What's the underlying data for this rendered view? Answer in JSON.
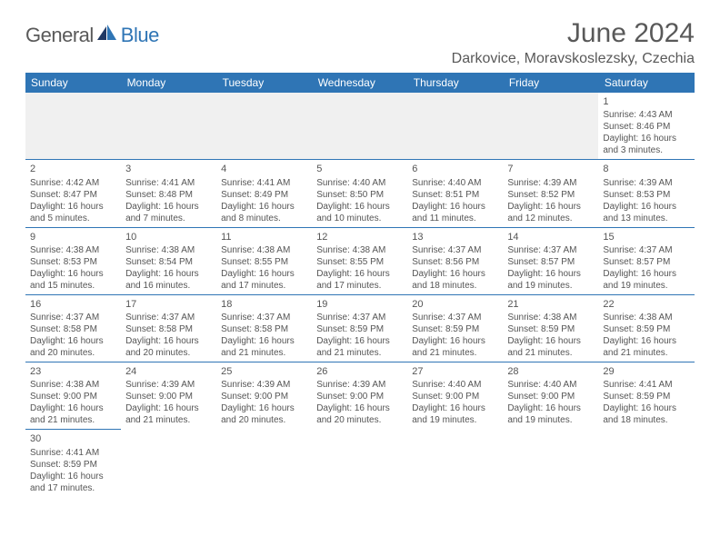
{
  "logo": {
    "part1": "General",
    "part2": "Blue"
  },
  "title": "June 2024",
  "location": "Darkovice, Moravskoslezsky, Czechia",
  "colors": {
    "header_bg": "#2f75b5",
    "header_text": "#ffffff",
    "body_text": "#555555",
    "border": "#2f75b5",
    "logo_gray": "#595959",
    "logo_blue": "#2f75b5"
  },
  "days": [
    "Sunday",
    "Monday",
    "Tuesday",
    "Wednesday",
    "Thursday",
    "Friday",
    "Saturday"
  ],
  "weeks": [
    [
      null,
      null,
      null,
      null,
      null,
      null,
      {
        "n": "1",
        "sr": "Sunrise: 4:43 AM",
        "ss": "Sunset: 8:46 PM",
        "d1": "Daylight: 16 hours",
        "d2": "and 3 minutes."
      }
    ],
    [
      {
        "n": "2",
        "sr": "Sunrise: 4:42 AM",
        "ss": "Sunset: 8:47 PM",
        "d1": "Daylight: 16 hours",
        "d2": "and 5 minutes."
      },
      {
        "n": "3",
        "sr": "Sunrise: 4:41 AM",
        "ss": "Sunset: 8:48 PM",
        "d1": "Daylight: 16 hours",
        "d2": "and 7 minutes."
      },
      {
        "n": "4",
        "sr": "Sunrise: 4:41 AM",
        "ss": "Sunset: 8:49 PM",
        "d1": "Daylight: 16 hours",
        "d2": "and 8 minutes."
      },
      {
        "n": "5",
        "sr": "Sunrise: 4:40 AM",
        "ss": "Sunset: 8:50 PM",
        "d1": "Daylight: 16 hours",
        "d2": "and 10 minutes."
      },
      {
        "n": "6",
        "sr": "Sunrise: 4:40 AM",
        "ss": "Sunset: 8:51 PM",
        "d1": "Daylight: 16 hours",
        "d2": "and 11 minutes."
      },
      {
        "n": "7",
        "sr": "Sunrise: 4:39 AM",
        "ss": "Sunset: 8:52 PM",
        "d1": "Daylight: 16 hours",
        "d2": "and 12 minutes."
      },
      {
        "n": "8",
        "sr": "Sunrise: 4:39 AM",
        "ss": "Sunset: 8:53 PM",
        "d1": "Daylight: 16 hours",
        "d2": "and 13 minutes."
      }
    ],
    [
      {
        "n": "9",
        "sr": "Sunrise: 4:38 AM",
        "ss": "Sunset: 8:53 PM",
        "d1": "Daylight: 16 hours",
        "d2": "and 15 minutes."
      },
      {
        "n": "10",
        "sr": "Sunrise: 4:38 AM",
        "ss": "Sunset: 8:54 PM",
        "d1": "Daylight: 16 hours",
        "d2": "and 16 minutes."
      },
      {
        "n": "11",
        "sr": "Sunrise: 4:38 AM",
        "ss": "Sunset: 8:55 PM",
        "d1": "Daylight: 16 hours",
        "d2": "and 17 minutes."
      },
      {
        "n": "12",
        "sr": "Sunrise: 4:38 AM",
        "ss": "Sunset: 8:55 PM",
        "d1": "Daylight: 16 hours",
        "d2": "and 17 minutes."
      },
      {
        "n": "13",
        "sr": "Sunrise: 4:37 AM",
        "ss": "Sunset: 8:56 PM",
        "d1": "Daylight: 16 hours",
        "d2": "and 18 minutes."
      },
      {
        "n": "14",
        "sr": "Sunrise: 4:37 AM",
        "ss": "Sunset: 8:57 PM",
        "d1": "Daylight: 16 hours",
        "d2": "and 19 minutes."
      },
      {
        "n": "15",
        "sr": "Sunrise: 4:37 AM",
        "ss": "Sunset: 8:57 PM",
        "d1": "Daylight: 16 hours",
        "d2": "and 19 minutes."
      }
    ],
    [
      {
        "n": "16",
        "sr": "Sunrise: 4:37 AM",
        "ss": "Sunset: 8:58 PM",
        "d1": "Daylight: 16 hours",
        "d2": "and 20 minutes."
      },
      {
        "n": "17",
        "sr": "Sunrise: 4:37 AM",
        "ss": "Sunset: 8:58 PM",
        "d1": "Daylight: 16 hours",
        "d2": "and 20 minutes."
      },
      {
        "n": "18",
        "sr": "Sunrise: 4:37 AM",
        "ss": "Sunset: 8:58 PM",
        "d1": "Daylight: 16 hours",
        "d2": "and 21 minutes."
      },
      {
        "n": "19",
        "sr": "Sunrise: 4:37 AM",
        "ss": "Sunset: 8:59 PM",
        "d1": "Daylight: 16 hours",
        "d2": "and 21 minutes."
      },
      {
        "n": "20",
        "sr": "Sunrise: 4:37 AM",
        "ss": "Sunset: 8:59 PM",
        "d1": "Daylight: 16 hours",
        "d2": "and 21 minutes."
      },
      {
        "n": "21",
        "sr": "Sunrise: 4:38 AM",
        "ss": "Sunset: 8:59 PM",
        "d1": "Daylight: 16 hours",
        "d2": "and 21 minutes."
      },
      {
        "n": "22",
        "sr": "Sunrise: 4:38 AM",
        "ss": "Sunset: 8:59 PM",
        "d1": "Daylight: 16 hours",
        "d2": "and 21 minutes."
      }
    ],
    [
      {
        "n": "23",
        "sr": "Sunrise: 4:38 AM",
        "ss": "Sunset: 9:00 PM",
        "d1": "Daylight: 16 hours",
        "d2": "and 21 minutes."
      },
      {
        "n": "24",
        "sr": "Sunrise: 4:39 AM",
        "ss": "Sunset: 9:00 PM",
        "d1": "Daylight: 16 hours",
        "d2": "and 21 minutes."
      },
      {
        "n": "25",
        "sr": "Sunrise: 4:39 AM",
        "ss": "Sunset: 9:00 PM",
        "d1": "Daylight: 16 hours",
        "d2": "and 20 minutes."
      },
      {
        "n": "26",
        "sr": "Sunrise: 4:39 AM",
        "ss": "Sunset: 9:00 PM",
        "d1": "Daylight: 16 hours",
        "d2": "and 20 minutes."
      },
      {
        "n": "27",
        "sr": "Sunrise: 4:40 AM",
        "ss": "Sunset: 9:00 PM",
        "d1": "Daylight: 16 hours",
        "d2": "and 19 minutes."
      },
      {
        "n": "28",
        "sr": "Sunrise: 4:40 AM",
        "ss": "Sunset: 9:00 PM",
        "d1": "Daylight: 16 hours",
        "d2": "and 19 minutes."
      },
      {
        "n": "29",
        "sr": "Sunrise: 4:41 AM",
        "ss": "Sunset: 8:59 PM",
        "d1": "Daylight: 16 hours",
        "d2": "and 18 minutes."
      }
    ],
    [
      {
        "n": "30",
        "sr": "Sunrise: 4:41 AM",
        "ss": "Sunset: 8:59 PM",
        "d1": "Daylight: 16 hours",
        "d2": "and 17 minutes."
      },
      null,
      null,
      null,
      null,
      null,
      null
    ]
  ]
}
